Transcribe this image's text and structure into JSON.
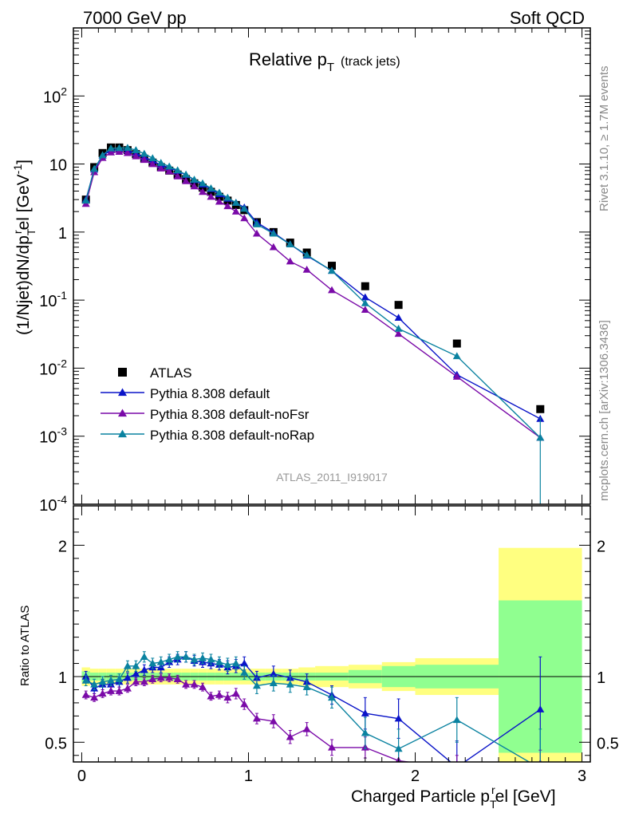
{
  "header": {
    "left": "7000 GeV pp",
    "right": "Soft QCD"
  },
  "plot_title": "Relative p",
  "plot_title_sub": "T",
  "plot_title_suffix": "(track jets)",
  "watermark": "ATLAS_2011_I919017",
  "side_text_top": "Rivet 3.1.10, ≥ 1.7M events",
  "side_text_bottom": "mcplots.cern.ch [arXiv:1306.3436]",
  "ylabel_main": "(1/Njet)dN/dp",
  "ylabel_main_parts": {
    "sub": "T",
    "sup": "r",
    "mid": "el [GeV",
    "sup2": "-1",
    "end": "]"
  },
  "ylabel_ratio": "Ratio to ATLAS",
  "xlabel": "Charged Particle p",
  "xlabel_parts": {
    "sub": "T",
    "sup": "r",
    "end": "el [GeV]"
  },
  "legend": [
    {
      "label": "ATLAS",
      "color": "#000000",
      "marker": "square"
    },
    {
      "label": "Pythia 8.308 default",
      "color": "#0a14c8",
      "marker": "triangle"
    },
    {
      "label": "Pythia 8.308 default-noFsr",
      "color": "#7a0aa8",
      "marker": "triangle"
    },
    {
      "label": "Pythia 8.308 default-noRap",
      "color": "#0a82a0",
      "marker": "triangle"
    }
  ],
  "chart_data": [
    {
      "type": "line",
      "panel": "main",
      "yscale": "log",
      "xlim": [
        -0.05,
        3.05
      ],
      "ylim": [
        0.0001,
        1000
      ],
      "y_tick_labels": [
        "10^-4",
        "10^-3",
        "10^-2",
        "10^-1",
        "1",
        "10",
        "10^2"
      ],
      "x": [
        0.025,
        0.075,
        0.125,
        0.175,
        0.225,
        0.275,
        0.325,
        0.375,
        0.425,
        0.475,
        0.525,
        0.575,
        0.625,
        0.675,
        0.725,
        0.775,
        0.825,
        0.875,
        0.925,
        0.975,
        1.05,
        1.15,
        1.25,
        1.35,
        1.5,
        1.7,
        1.9,
        2.25,
        2.75
      ],
      "series": [
        {
          "name": "ATLAS",
          "values": [
            3.0,
            9.0,
            14.5,
            17.5,
            17.5,
            16.0,
            14.0,
            12.0,
            10.5,
            9.0,
            8.0,
            7.0,
            6.0,
            5.2,
            4.5,
            3.9,
            3.3,
            2.9,
            2.5,
            2.1,
            1.4,
            1.0,
            0.7,
            0.5,
            0.32,
            0.16,
            0.085,
            0.023,
            0.0025
          ]
        },
        {
          "name": "Pythia 8.308 default",
          "values": [
            3.0,
            8.3,
            13.3,
            16.0,
            16.2,
            15.8,
            14.3,
            12.6,
            11.2,
            9.6,
            8.9,
            7.9,
            6.9,
            5.8,
            5.0,
            4.3,
            3.6,
            3.1,
            2.7,
            2.3,
            1.38,
            0.98,
            0.66,
            0.45,
            0.27,
            0.11,
            0.055,
            0.008,
            0.0018
          ]
        },
        {
          "name": "Pythia 8.308 default-noFsr",
          "values": [
            2.6,
            7.6,
            12.3,
            14.8,
            15.1,
            14.5,
            13.0,
            11.5,
            10.0,
            8.6,
            7.8,
            6.6,
            5.6,
            4.7,
            3.9,
            3.3,
            2.8,
            2.4,
            2.0,
            1.6,
            0.95,
            0.6,
            0.37,
            0.28,
            0.14,
            0.072,
            0.032,
            0.0075,
            0.00095
          ]
        },
        {
          "name": "Pythia 8.308 default-noRap",
          "values": [
            2.9,
            8.5,
            13.5,
            17.0,
            17.2,
            17.3,
            16.0,
            14.2,
            12.2,
            10.4,
            9.2,
            8.1,
            7.0,
            5.9,
            5.2,
            4.4,
            3.8,
            3.2,
            2.7,
            2.2,
            1.3,
            0.95,
            0.66,
            0.46,
            0.27,
            0.09,
            0.038,
            0.015,
            0.00095
          ]
        }
      ]
    },
    {
      "type": "line",
      "panel": "ratio",
      "xlim": [
        -0.05,
        3.05
      ],
      "ylim": [
        0.35,
        2.3
      ],
      "y_ticks": [
        0.5,
        1,
        2
      ],
      "x_ticks": [
        0,
        1,
        2,
        3
      ],
      "bands": {
        "x_edges": [
          0.0,
          0.05,
          0.1,
          0.15,
          0.2,
          0.25,
          0.3,
          0.35,
          0.4,
          0.45,
          0.5,
          0.55,
          0.6,
          0.65,
          0.7,
          0.75,
          0.8,
          0.85,
          0.9,
          0.95,
          1.0,
          1.1,
          1.2,
          1.3,
          1.4,
          1.6,
          1.8,
          2.0,
          2.5,
          3.0
        ],
        "stat_half": [
          0.04,
          0.03,
          0.03,
          0.03,
          0.03,
          0.03,
          0.03,
          0.03,
          0.03,
          0.03,
          0.03,
          0.03,
          0.03,
          0.03,
          0.03,
          0.03,
          0.03,
          0.03,
          0.03,
          0.03,
          0.03,
          0.03,
          0.03,
          0.03,
          0.03,
          0.05,
          0.08,
          0.09,
          0.58
        ],
        "total_half": [
          0.07,
          0.06,
          0.06,
          0.06,
          0.06,
          0.06,
          0.06,
          0.06,
          0.06,
          0.06,
          0.06,
          0.06,
          0.06,
          0.06,
          0.06,
          0.06,
          0.06,
          0.06,
          0.06,
          0.06,
          0.06,
          0.06,
          0.06,
          0.07,
          0.08,
          0.09,
          0.11,
          0.14,
          0.98
        ]
      },
      "x": [
        0.025,
        0.075,
        0.125,
        0.175,
        0.225,
        0.275,
        0.325,
        0.375,
        0.425,
        0.475,
        0.525,
        0.575,
        0.625,
        0.675,
        0.725,
        0.775,
        0.825,
        0.875,
        0.925,
        0.975,
        1.05,
        1.15,
        1.25,
        1.35,
        1.5,
        1.7,
        1.9,
        2.25,
        2.75
      ],
      "series": [
        {
          "name": "Pythia 8.308 default",
          "values": [
            1.0,
            0.91,
            0.94,
            0.94,
            0.96,
            0.99,
            1.02,
            1.05,
            1.07,
            1.07,
            1.11,
            1.13,
            1.15,
            1.12,
            1.11,
            1.1,
            1.09,
            1.07,
            1.08,
            1.1,
            0.99,
            1.02,
            0.99,
            0.96,
            0.86,
            0.72,
            0.68,
            0.31,
            0.75
          ],
          "errors": [
            0.04,
            0.04,
            0.04,
            0.04,
            0.04,
            0.04,
            0.04,
            0.04,
            0.04,
            0.04,
            0.04,
            0.04,
            0.04,
            0.04,
            0.04,
            0.04,
            0.04,
            0.05,
            0.05,
            0.05,
            0.05,
            0.06,
            0.06,
            0.06,
            0.07,
            0.12,
            0.15,
            0.2,
            0.4
          ]
        },
        {
          "name": "Pythia 8.308 default-noFsr",
          "values": [
            0.86,
            0.84,
            0.87,
            0.89,
            0.89,
            0.91,
            0.96,
            0.96,
            0.98,
            0.99,
            0.99,
            0.98,
            0.94,
            0.94,
            0.92,
            0.85,
            0.86,
            0.84,
            0.87,
            0.79,
            0.68,
            0.66,
            0.54,
            0.6,
            0.46,
            0.46,
            0.36,
            0.3,
            0.34
          ],
          "errors": [
            0.03,
            0.03,
            0.03,
            0.03,
            0.03,
            0.03,
            0.03,
            0.03,
            0.03,
            0.03,
            0.03,
            0.03,
            0.03,
            0.03,
            0.03,
            0.03,
            0.03,
            0.04,
            0.04,
            0.04,
            0.04,
            0.05,
            0.05,
            0.05,
            0.06,
            0.08,
            0.1,
            0.1,
            0.1
          ]
        },
        {
          "name": "Pythia 8.308 default-noRap",
          "values": [
            0.97,
            0.94,
            0.96,
            0.97,
            0.98,
            1.08,
            1.08,
            1.15,
            1.1,
            1.11,
            1.13,
            1.15,
            1.15,
            1.13,
            1.14,
            1.13,
            1.11,
            1.09,
            1.1,
            1.03,
            0.93,
            0.95,
            0.94,
            0.92,
            0.84,
            0.57,
            0.45,
            0.67,
            0.3
          ],
          "errors": [
            0.04,
            0.04,
            0.04,
            0.04,
            0.04,
            0.04,
            0.04,
            0.04,
            0.04,
            0.04,
            0.04,
            0.04,
            0.04,
            0.04,
            0.04,
            0.04,
            0.04,
            0.05,
            0.05,
            0.05,
            0.06,
            0.06,
            0.06,
            0.06,
            0.08,
            0.12,
            0.15,
            0.17,
            0.3
          ]
        }
      ]
    }
  ]
}
